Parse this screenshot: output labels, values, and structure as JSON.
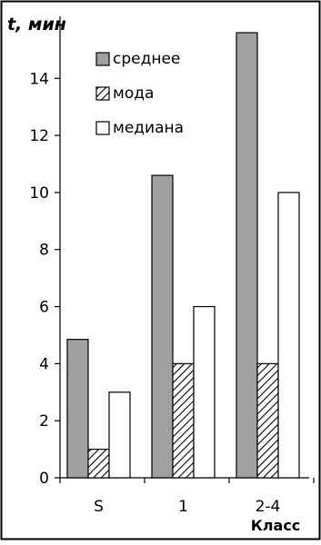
{
  "chart_data": {
    "type": "bar",
    "ylabel": "t, мин",
    "xlabel": "Класс",
    "categories": [
      "S",
      "1",
      "2-4"
    ],
    "ylim": [
      0,
      15.6
    ],
    "yticks": [
      0,
      2,
      4,
      6,
      8,
      10,
      12,
      14
    ],
    "grid": false,
    "legend_position": "top-center",
    "series": [
      {
        "name": "среднее",
        "values": [
          4.85,
          10.6,
          15.6
        ],
        "color": "#a0a0a0",
        "pattern": "solid"
      },
      {
        "name": "мода",
        "values": [
          1.0,
          4.0,
          4.0
        ],
        "color": "#ffffff",
        "pattern": "diagonal-hatch"
      },
      {
        "name": "медиана",
        "values": [
          3.0,
          6.0,
          10.0
        ],
        "color": "#ffffff",
        "pattern": "none"
      }
    ]
  }
}
